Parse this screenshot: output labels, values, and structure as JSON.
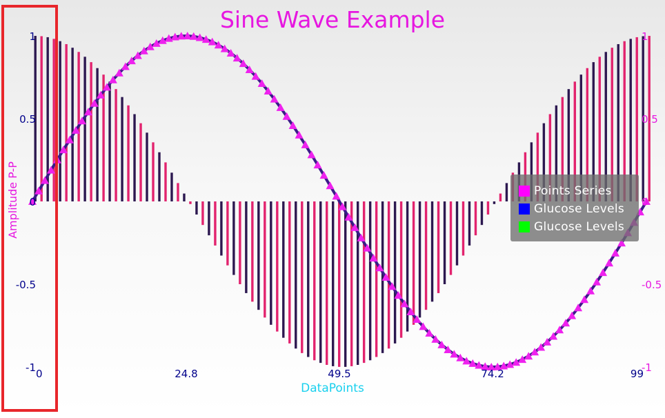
{
  "chart_data": {
    "type": "bar+line+scatter",
    "title": "Sine Wave Example",
    "xlabel": "DataPoints",
    "ylabel": "Amplitude P-P",
    "x_ticks": [
      "0",
      "24.8",
      "49.5",
      "74.2",
      "99"
    ],
    "y_ticks_left": [
      "-1",
      "-0.5",
      "0",
      "0.5",
      "1"
    ],
    "y_ticks_right": [
      "-1",
      "-0.5",
      "0",
      "0.5",
      "1"
    ],
    "xlim": [
      0,
      99
    ],
    "ylim": [
      -1,
      1
    ],
    "x_count": 100,
    "series": [
      {
        "name": "Points Series",
        "kind": "scatter-triangle",
        "formula": "sin(2*pi*x/99)",
        "color": "#ee22ee"
      },
      {
        "name": "Glucose Levels",
        "kind": "line",
        "formula": "sin(2*pi*x/99)",
        "color": "#0000ff",
        "line_color": "#3a1b88"
      },
      {
        "name": "Glucose Levels",
        "kind": "bar",
        "formula": "cos(2*pi*x/99)",
        "color": "#00ff00",
        "bar_colors": [
          "#2c1850",
          "#e2236e"
        ]
      }
    ],
    "legend": {
      "placement": "right",
      "items": [
        "Points Series",
        "Glucose Levels",
        "Glucose Levels"
      ],
      "colors": [
        "#ff00ff",
        "#0000ff",
        "#00ff00"
      ]
    },
    "grid": false,
    "colors": {
      "title": "#e617e0",
      "ylabel": "#e617e0",
      "xlabel": "#19d0ee",
      "left_ticks": "#00008b",
      "right_ticks": "#e617e0",
      "x_ticks": "#00008b",
      "highlight": "#e8262b"
    }
  }
}
